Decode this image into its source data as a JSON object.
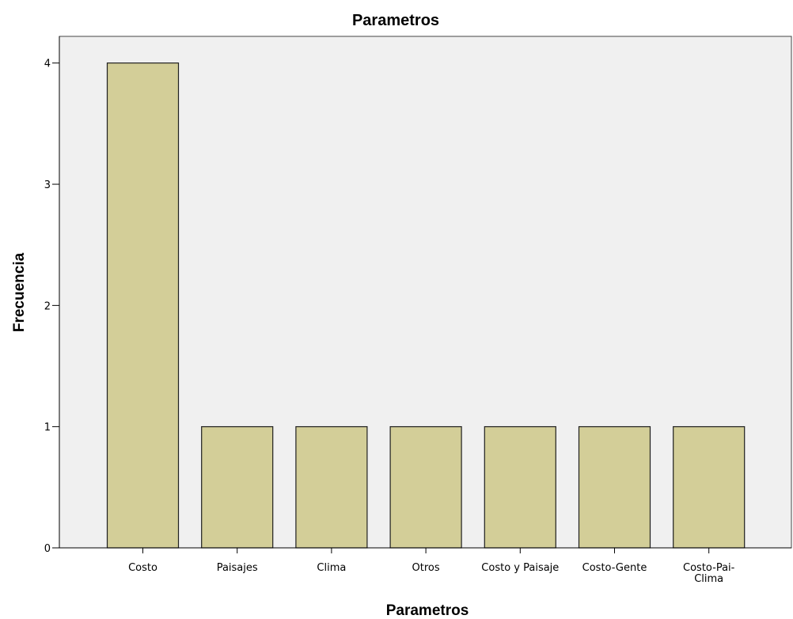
{
  "chart_data": {
    "type": "bar",
    "title": "Parametros",
    "xlabel": "Parametros",
    "ylabel": "Frecuencia",
    "categories": [
      "Costo",
      "Paisajes",
      "Clima",
      "Otros",
      "Costo y Paisaje",
      "Costo-Gente",
      "Costo-Pai-Clima"
    ],
    "values": [
      4,
      1,
      1,
      1,
      1,
      1,
      1
    ],
    "ylim": [
      0,
      4.22
    ],
    "yticks": [
      0,
      1,
      2,
      3,
      4
    ],
    "grid": false,
    "legend": "none",
    "colors": {
      "bar_fill": "#d3ce98",
      "bar_stroke": "#1f1f1f",
      "plot_background": "#f0f0f0",
      "axis": "#000000"
    }
  }
}
